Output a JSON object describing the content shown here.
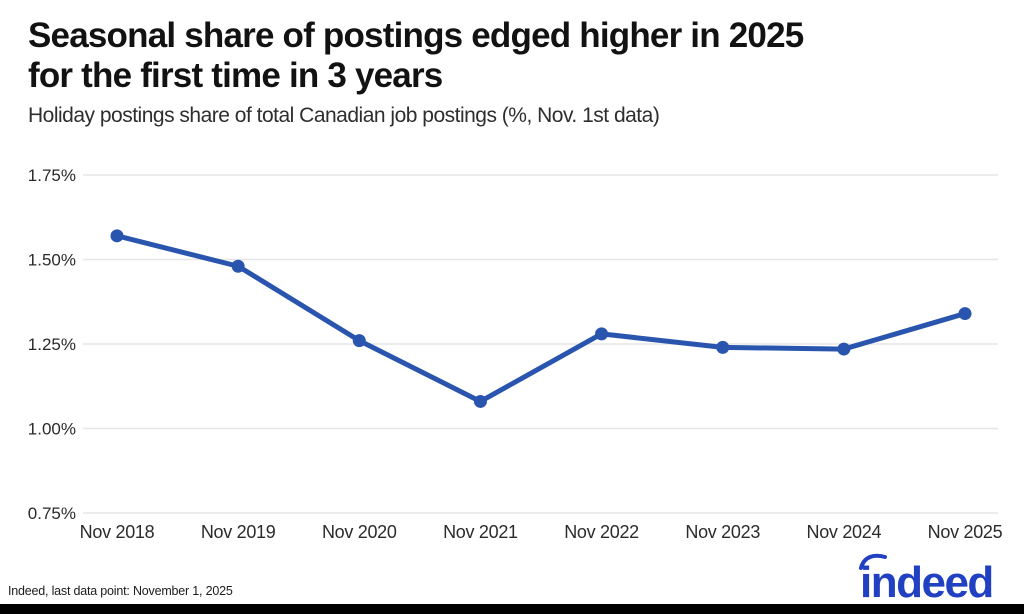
{
  "header": {
    "title_line1": "Seasonal share of postings edged higher in 2025",
    "title_line2": "for the first time in 3 years",
    "subtitle": "Holiday postings share of total Canadian job postings (%, Nov. 1st data)"
  },
  "chart_data": {
    "type": "line",
    "title": "Seasonal share of postings edged higher in 2025 for the first time in 3 years",
    "subtitle": "Holiday postings share of total Canadian job postings (%, Nov. 1st data)",
    "categories": [
      "Nov 2018",
      "Nov 2019",
      "Nov 2020",
      "Nov 2021",
      "Nov 2022",
      "Nov 2023",
      "Nov 2024",
      "Nov 2025"
    ],
    "series": [
      {
        "name": "Holiday postings share of total Canadian job postings (%)",
        "values": [
          1.57,
          1.48,
          1.26,
          1.08,
          1.28,
          1.24,
          1.235,
          1.34
        ]
      }
    ],
    "xlabel": "",
    "ylabel": "",
    "ylim": [
      0.75,
      1.75
    ],
    "yticks": [
      {
        "value": 0.75,
        "label": "0.75%"
      },
      {
        "value": 1.0,
        "label": "1.00%"
      },
      {
        "value": 1.25,
        "label": "1.25%"
      },
      {
        "value": 1.5,
        "label": "1.50%"
      },
      {
        "value": 1.75,
        "label": "1.75%"
      }
    ],
    "grid": true,
    "legend": "none",
    "line_color": "#2a55ae",
    "marker": "circle",
    "gridline_color": "#e6e6e6",
    "tick_label_color": "#2b2b2b"
  },
  "footer": {
    "source_note": "Indeed, last data point: November 1, 2025",
    "logo_text": "indeed",
    "logo_color": "#2140c2",
    "bottom_bar_color": "#000000"
  }
}
